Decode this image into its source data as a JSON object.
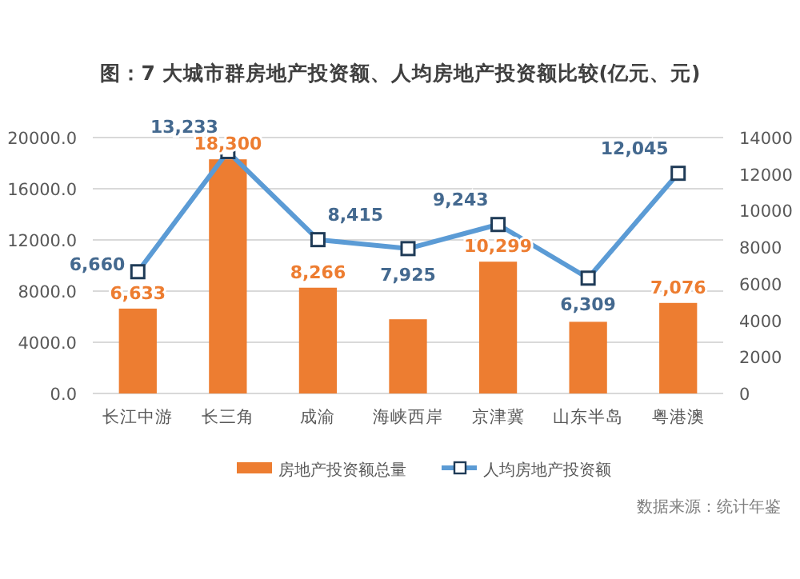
{
  "chart_data": {
    "type": "bar",
    "title": "图：7 大城市群房地产投资额、人均房地产投资额比较(亿元、元)",
    "categories": [
      "长江中游",
      "长三角",
      "成渝",
      "海峡西岸",
      "京津冀",
      "山东半岛",
      "粤港澳"
    ],
    "series": [
      {
        "name": "房地产投资额总量",
        "color": "#ed7d31",
        "values": [
          6633,
          18300,
          8266,
          5800,
          10299,
          5600,
          7076
        ],
        "value_labels": [
          "6,633",
          "18,300",
          "8,266",
          null,
          "10,299",
          null,
          "7,076"
        ]
      },
      {
        "name": "人均房地产投资额",
        "type": "line",
        "axis": "y2",
        "color": "#5b9bd5",
        "marker": "square",
        "values": [
          6660,
          13233,
          8415,
          7925,
          9243,
          6309,
          12045
        ],
        "value_labels": [
          "6,660",
          "13,233",
          "8,415",
          "7,925",
          "9,243",
          "6,309",
          "12,045"
        ]
      }
    ],
    "ylim": [
      0,
      20000
    ],
    "yticks": [
      {
        "value": 0,
        "label": "0.0"
      },
      {
        "value": 4000,
        "label": "4000.0"
      },
      {
        "value": 8000,
        "label": "8000.0"
      },
      {
        "value": 12000,
        "label": "12000.0"
      },
      {
        "value": 16000,
        "label": "16000.0"
      },
      {
        "value": 20000,
        "label": "20000.0"
      }
    ],
    "y2lim": [
      0,
      14000
    ],
    "y2ticks": [
      0,
      2000,
      4000,
      6000,
      8000,
      10000,
      12000,
      14000
    ],
    "grid": "y",
    "legend": "bottom",
    "annotations": [
      "数据来源：统计年鉴"
    ]
  }
}
